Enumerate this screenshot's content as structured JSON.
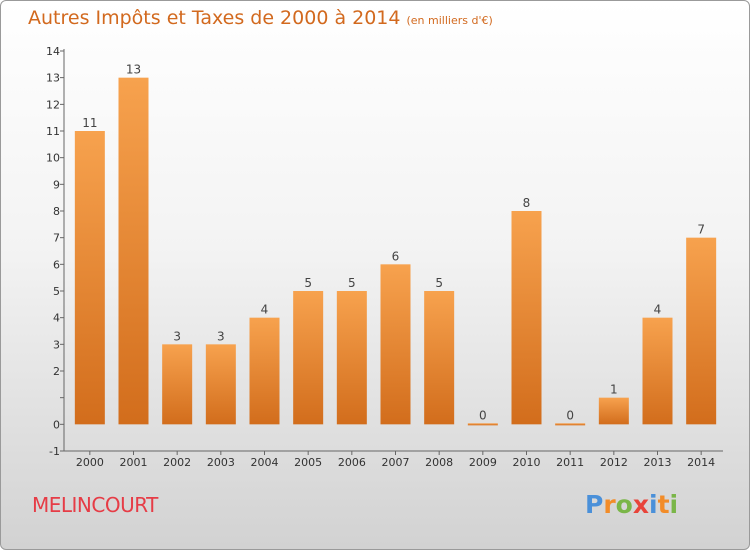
{
  "header": {
    "title": "Autres Impôts et Taxes de 2000 à 2014",
    "unit": "(en milliers d'€)"
  },
  "footer": {
    "town": "MELINCOURT",
    "logo": [
      "P",
      "r",
      "o",
      "x",
      "i",
      "t",
      "i"
    ]
  },
  "colors": {
    "bar_light": "#f7a04c",
    "bar_dark": "#d4701e",
    "title": "#d2691e",
    "town": "#e63c46",
    "logo": [
      "#4a90d9",
      "#f28c28",
      "#7ab648",
      "#e8443a",
      "#4a90d9",
      "#f28c28",
      "#7ab648"
    ]
  },
  "chart_data": {
    "type": "bar",
    "title": "Autres Impôts et Taxes de 2000 à 2014",
    "subtitle": "(en milliers d'€)",
    "xlabel": "",
    "ylabel": "",
    "categories": [
      "2000",
      "2001",
      "2002",
      "2003",
      "2004",
      "2005",
      "2006",
      "2007",
      "2008",
      "2009",
      "2010",
      "2011",
      "2012",
      "2013",
      "2014"
    ],
    "values": [
      11,
      13,
      3,
      3,
      4,
      5,
      5,
      6,
      5,
      0,
      8,
      0,
      1,
      4,
      7
    ],
    "value_labels": [
      "11",
      "13",
      "3",
      "3",
      "4",
      "5",
      "5",
      "6",
      "5",
      "0",
      "8",
      "0",
      "1",
      "4",
      "7"
    ],
    "ylim": [
      -1,
      14
    ],
    "yticks": [
      -1,
      0,
      1,
      2,
      3,
      4,
      5,
      6,
      7,
      8,
      9,
      10,
      11,
      12,
      13,
      14
    ],
    "ytick_labels": [
      "-1",
      "0",
      "",
      "2",
      "3",
      "4",
      "5",
      "6",
      "7",
      "8",
      "9",
      "10",
      "11",
      "12",
      "13",
      "14"
    ],
    "grid": false,
    "legend": "none"
  }
}
